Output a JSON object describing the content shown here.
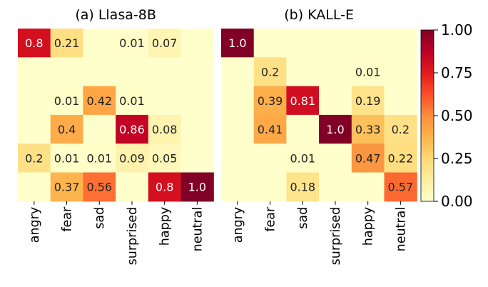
{
  "chart_data": {
    "type": "heatmap",
    "colormap": "YlOrRd",
    "color_range": [
      0.0,
      1.0
    ],
    "categories": [
      "angry",
      "fear",
      "sad",
      "surprised",
      "happy",
      "neutral"
    ],
    "panels": [
      {
        "title": "(a) Llasa-8B",
        "values": [
          [
            0.8,
            0.21,
            0,
            0.01,
            0.07,
            0
          ],
          [
            0,
            0,
            0,
            0,
            0,
            0
          ],
          [
            0,
            0.01,
            0.42,
            0.01,
            0,
            0
          ],
          [
            0,
            0.4,
            0,
            0.86,
            0.08,
            0
          ],
          [
            0.2,
            0.01,
            0.01,
            0.09,
            0.05,
            0
          ],
          [
            0,
            0.37,
            0.56,
            0,
            0.8,
            1.0
          ]
        ],
        "labels": [
          [
            "0.8",
            "0.21",
            "",
            "0.01",
            "0.07",
            ""
          ],
          [
            "",
            "",
            "",
            "",
            "",
            ""
          ],
          [
            "",
            "0.01",
            "0.42",
            "0.01",
            "",
            ""
          ],
          [
            "",
            "0.4",
            "",
            "0.86",
            "0.08",
            ""
          ],
          [
            "0.2",
            "0.01",
            "0.01",
            "0.09",
            "0.05",
            ""
          ],
          [
            "",
            "0.37",
            "0.56",
            "",
            "0.8",
            "1.0"
          ]
        ]
      },
      {
        "title": "(b) KALL-E",
        "values": [
          [
            1.0,
            0,
            0,
            0,
            0,
            0
          ],
          [
            0,
            0.2,
            0,
            0,
            0.01,
            0
          ],
          [
            0,
            0.39,
            0.81,
            0,
            0.19,
            0
          ],
          [
            0,
            0.41,
            0,
            1.0,
            0.33,
            0.2
          ],
          [
            0,
            0,
            0.01,
            0,
            0.47,
            0.22
          ],
          [
            0,
            0,
            0.18,
            0,
            0,
            0.57
          ]
        ],
        "labels": [
          [
            "1.0",
            "",
            "",
            "",
            "",
            ""
          ],
          [
            "",
            "0.2",
            "",
            "",
            "0.01",
            ""
          ],
          [
            "",
            "0.39",
            "0.81",
            "",
            "0.19",
            ""
          ],
          [
            "",
            "0.41",
            "",
            "1.0",
            "0.33",
            "0.2"
          ],
          [
            "",
            "",
            "0.01",
            "",
            "0.47",
            "0.22"
          ],
          [
            "",
            "",
            "0.18",
            "",
            "",
            "0.57"
          ]
        ]
      }
    ],
    "colorbar": {
      "ticks": [
        "0.00",
        "0.25",
        "0.50",
        "0.75",
        "1.00"
      ],
      "tick_values": [
        0.0,
        0.25,
        0.5,
        0.75,
        1.0
      ]
    }
  }
}
